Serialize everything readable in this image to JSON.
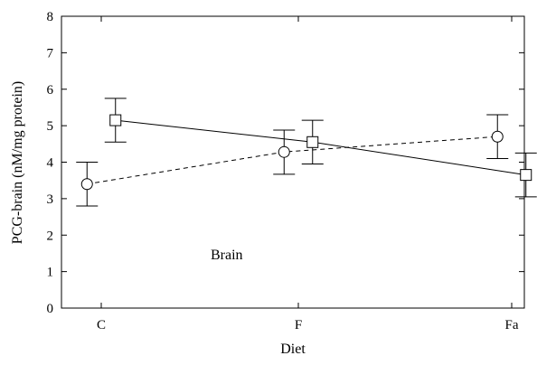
{
  "chart_data": {
    "type": "line",
    "title": "",
    "xlabel": "Diet",
    "ylabel": "PCG-brain (nM/mg protein)",
    "annotation": "Brain",
    "categories": [
      "C",
      "F",
      "Fa"
    ],
    "ylim": [
      0,
      8
    ],
    "yticks": [
      "0",
      "1",
      "2",
      "3",
      "4",
      "5",
      "6",
      "7",
      "8"
    ],
    "grid": false,
    "legend": "none",
    "series": [
      {
        "marker": "circle",
        "linestyle": "dashed",
        "x_offset": -0.15,
        "values": [
          3.4,
          4.28,
          4.7
        ],
        "err_low": [
          2.8,
          3.67,
          4.1
        ],
        "err_high": [
          4.0,
          4.88,
          5.3
        ]
      },
      {
        "marker": "square",
        "linestyle": "solid",
        "x_offset": 0.15,
        "values": [
          5.15,
          4.55,
          3.65
        ],
        "err_low": [
          4.55,
          3.95,
          3.05
        ],
        "err_high": [
          5.75,
          5.15,
          4.25
        ]
      }
    ]
  }
}
